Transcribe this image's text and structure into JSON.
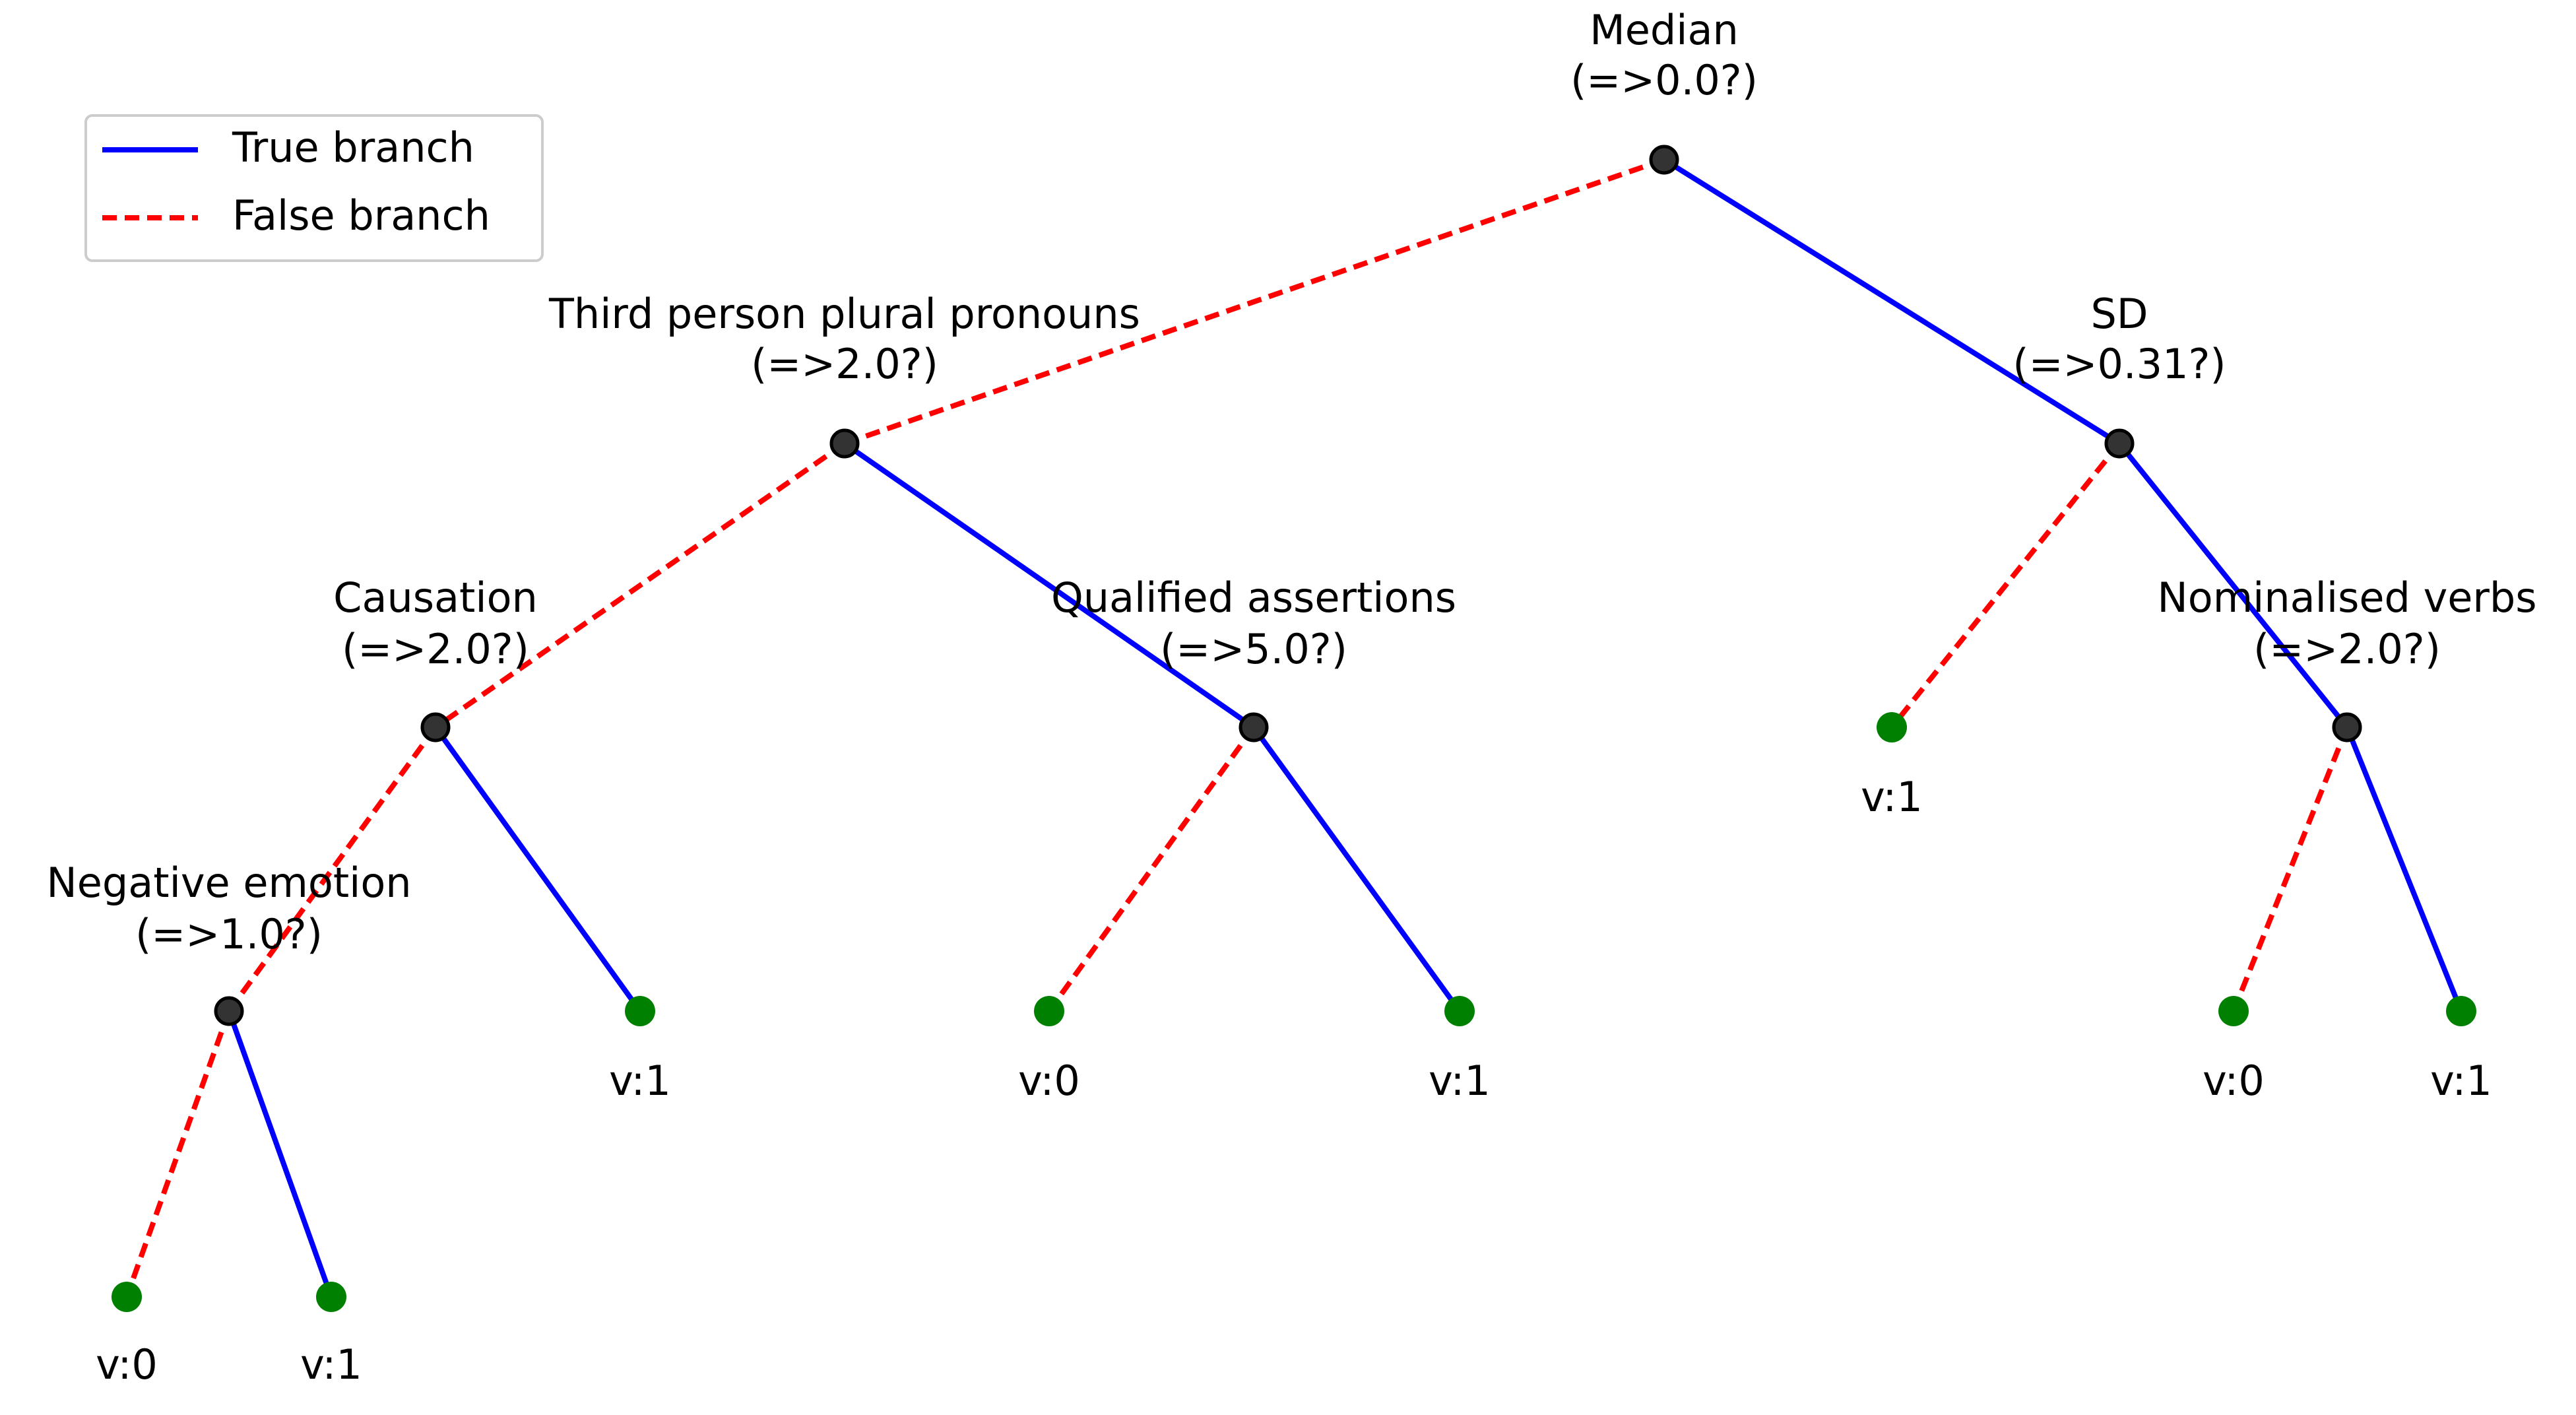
{
  "legend": {
    "entries": [
      "True branch",
      "False branch"
    ]
  },
  "nodes": [
    {
      "label": "Median",
      "condition": "(=>0.0?)"
    },
    {
      "label": "Third person plural pronouns",
      "condition": "(=>2.0?)"
    },
    {
      "label": "SD",
      "condition": "(=>0.31?)"
    },
    {
      "label": "Causation",
      "condition": "(=>2.0?)"
    },
    {
      "label": "Qualified assertions",
      "condition": "(=>5.0?)"
    },
    {
      "label": "Nominalised verbs",
      "condition": "(=>2.0?)"
    },
    {
      "label": "Negative emotion",
      "condition": "(=>1.0?)"
    }
  ],
  "leaves": [
    "v:1",
    "v:1",
    "v:0",
    "v:1",
    "v:0",
    "v:1",
    "v:0",
    "v:1"
  ]
}
